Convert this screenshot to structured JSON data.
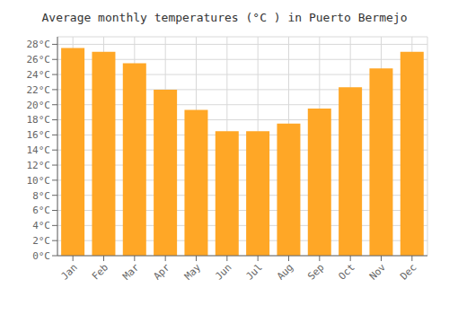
{
  "chart_data": {
    "type": "bar",
    "title": "Average monthly temperatures (°C ) in Puerto Bermejo",
    "categories": [
      "Jan",
      "Feb",
      "Mar",
      "Apr",
      "May",
      "Jun",
      "Jul",
      "Aug",
      "Sep",
      "Oct",
      "Nov",
      "Dec"
    ],
    "values": [
      27.5,
      27.0,
      25.5,
      22.0,
      19.3,
      16.5,
      16.5,
      17.5,
      19.5,
      22.3,
      24.8,
      27.0
    ],
    "color": "#FFA726",
    "ylim": [
      0,
      29
    ],
    "yticks": [
      {
        "value": 0,
        "label": "0°C"
      },
      {
        "value": 2,
        "label": "2°C"
      },
      {
        "value": 4,
        "label": "4°C"
      },
      {
        "value": 6,
        "label": "6°C"
      },
      {
        "value": 8,
        "label": "8°C"
      },
      {
        "value": 10,
        "label": "10°C"
      },
      {
        "value": 12,
        "label": "12°C"
      },
      {
        "value": 14,
        "label": "14°C"
      },
      {
        "value": 16,
        "label": "16°C"
      },
      {
        "value": 18,
        "label": "18°C"
      },
      {
        "value": 20,
        "label": "20°C"
      },
      {
        "value": 22,
        "label": "22°C"
      },
      {
        "value": 24,
        "label": "24°C"
      },
      {
        "value": 26,
        "label": "26°C"
      },
      {
        "value": 28,
        "label": "28°C"
      }
    ],
    "grid": true
  }
}
